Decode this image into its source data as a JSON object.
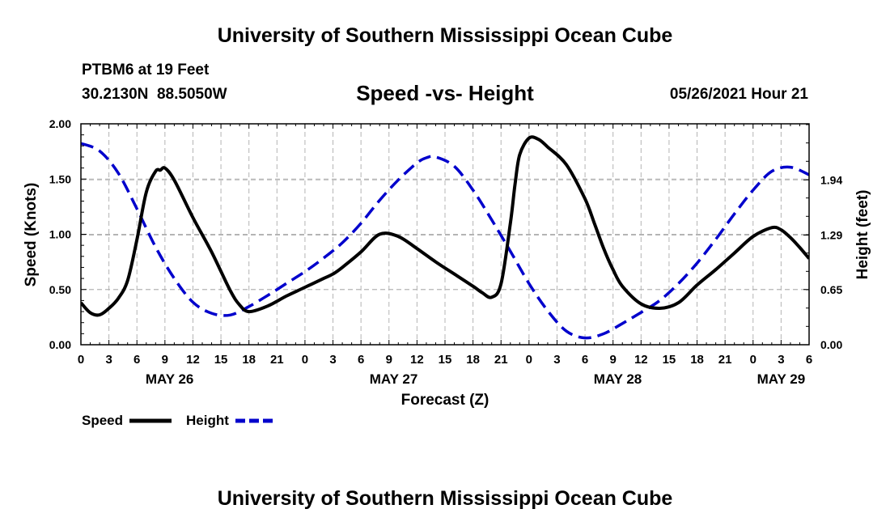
{
  "header": {
    "title": "University of Southern Mississippi Ocean Cube",
    "station": "PTBM6 at 19 Feet",
    "coords": "30.2130N  88.5050W",
    "subtitle": "Speed -vs- Height",
    "datetime": "05/26/2021 Hour 21"
  },
  "footer": {
    "title": "University of Southern Mississippi Ocean Cube"
  },
  "legend": {
    "speed_label": "Speed",
    "height_label": "Height"
  },
  "colors": {
    "speed": "#000000",
    "height": "#0000cc",
    "grid": "#b4b4b4"
  },
  "chart_data": {
    "type": "line",
    "title": "Speed -vs- Height",
    "xlabel": "Forecast (Z)",
    "ylabel": "Speed (Knots)",
    "y2label": "Height (feet)",
    "xlim": [
      0,
      78
    ],
    "ylim": [
      0,
      2
    ],
    "y2lim": [
      0,
      2.6
    ],
    "x_ticks": [
      0,
      3,
      6,
      9,
      12,
      15,
      18,
      21,
      24,
      27,
      30,
      33,
      36,
      39,
      42,
      45,
      48,
      51,
      54,
      57,
      60,
      63,
      66,
      69,
      72,
      75,
      78
    ],
    "x_tick_labels": [
      "0",
      "3",
      "6",
      "9",
      "12",
      "15",
      "18",
      "21",
      "0",
      "3",
      "6",
      "9",
      "12",
      "15",
      "18",
      "21",
      "0",
      "3",
      "6",
      "9",
      "12",
      "15",
      "18",
      "21",
      "0",
      "3",
      "6"
    ],
    "day_labels": [
      {
        "x": 9.5,
        "label": "MAY 26"
      },
      {
        "x": 33.5,
        "label": "MAY 27"
      },
      {
        "x": 57.5,
        "label": "MAY 28"
      },
      {
        "x": 75,
        "label": "MAY 29"
      }
    ],
    "y_ticks": [
      0,
      0.5,
      1.0,
      1.5,
      2.0
    ],
    "y_tick_labels": [
      "0.00",
      "0.50",
      "1.00",
      "1.50",
      "2.00"
    ],
    "y2_ticks": [
      0,
      0.65,
      1.29,
      1.94
    ],
    "y2_tick_labels": [
      "0.00",
      "0.65",
      "1.29",
      "1.94"
    ],
    "grid": true,
    "legend_position": "bottom-left",
    "series": [
      {
        "name": "Speed",
        "axis": "left",
        "style": "solid",
        "x": [
          0,
          1,
          2,
          3,
          4,
          5,
          6,
          7,
          8,
          8.5,
          9,
          10,
          12,
          14,
          16,
          17,
          18,
          20,
          22,
          24,
          26,
          27,
          28,
          30,
          32,
          34,
          36,
          38,
          40,
          42,
          43,
          44,
          45,
          46,
          46.5,
          47,
          48,
          49,
          50,
          52,
          54,
          55,
          56,
          57,
          58,
          60,
          62,
          64,
          66,
          68,
          70,
          72,
          74,
          75,
          76,
          77,
          78
        ],
        "y": [
          0.38,
          0.29,
          0.27,
          0.33,
          0.42,
          0.58,
          0.95,
          1.38,
          1.57,
          1.58,
          1.6,
          1.49,
          1.15,
          0.84,
          0.49,
          0.36,
          0.3,
          0.35,
          0.44,
          0.52,
          0.6,
          0.64,
          0.7,
          0.84,
          1.0,
          0.98,
          0.87,
          0.75,
          0.64,
          0.53,
          0.47,
          0.43,
          0.55,
          1.1,
          1.45,
          1.72,
          1.87,
          1.86,
          1.79,
          1.63,
          1.32,
          1.1,
          0.87,
          0.68,
          0.53,
          0.37,
          0.33,
          0.38,
          0.54,
          0.68,
          0.83,
          0.98,
          1.06,
          1.04,
          0.97,
          0.88,
          0.78
        ]
      },
      {
        "name": "Height",
        "axis": "right",
        "style": "dashed",
        "x": [
          0,
          2,
          4,
          6,
          8,
          10,
          12,
          14,
          16,
          18,
          20,
          22,
          24,
          26,
          28,
          30,
          32,
          34,
          36,
          37,
          38,
          40,
          42,
          44,
          46,
          48,
          50,
          52,
          54,
          56,
          58,
          60,
          62,
          64,
          66,
          68,
          70,
          72,
          74,
          76,
          78
        ],
        "y": [
          2.37,
          2.28,
          2.02,
          1.6,
          1.15,
          0.78,
          0.5,
          0.37,
          0.35,
          0.45,
          0.58,
          0.72,
          0.86,
          1.02,
          1.2,
          1.43,
          1.7,
          1.94,
          2.14,
          2.2,
          2.21,
          2.1,
          1.82,
          1.47,
          1.1,
          0.72,
          0.4,
          0.16,
          0.08,
          0.13,
          0.25,
          0.38,
          0.52,
          0.72,
          0.96,
          1.24,
          1.54,
          1.82,
          2.04,
          2.09,
          2.0
        ]
      }
    ]
  }
}
